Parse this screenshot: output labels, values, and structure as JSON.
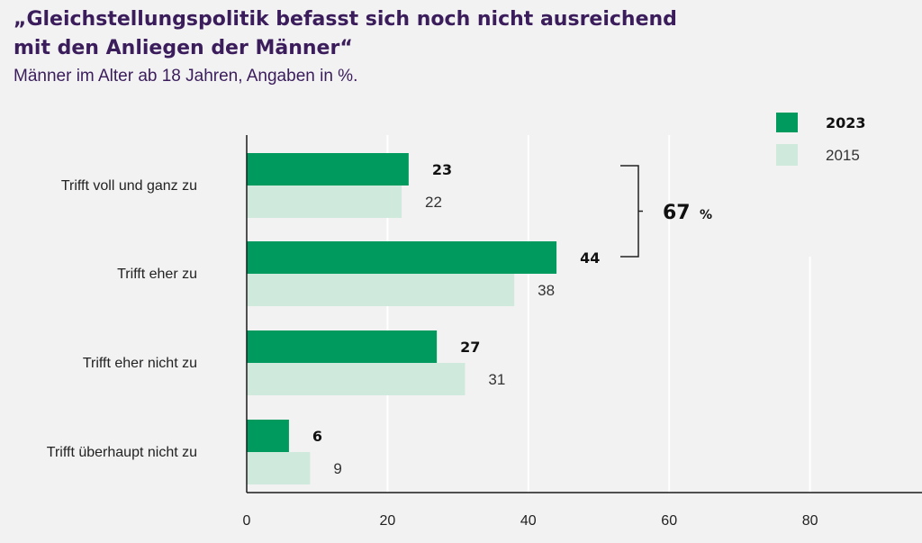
{
  "header": {
    "title_line1": "„Gleichstellungspolitik befasst sich noch nicht ausreichend",
    "title_line2": "mit den Anliegen der Männer“",
    "subtitle": "Männer im Alter ab 18 Jahren, Angaben in %."
  },
  "colors": {
    "series_2023": "#009a5e",
    "series_2015": "#cfeadd",
    "title": "#3b1d5c",
    "grid": "#ffffff",
    "axis": "#1a1a1a"
  },
  "chart_data": {
    "type": "bar",
    "orientation": "horizontal",
    "categories": [
      "Trifft voll und ganz zu",
      "Trifft eher zu",
      "Trifft eher nicht zu",
      "Trifft überhaupt nicht zu"
    ],
    "series": [
      {
        "name": "2023",
        "values": [
          23,
          44,
          27,
          6
        ]
      },
      {
        "name": "2015",
        "values": [
          22,
          38,
          31,
          9
        ]
      }
    ],
    "xlim": [
      0,
      92
    ],
    "xticks": [
      0,
      20,
      40,
      60,
      80
    ],
    "grid": true,
    "legend_position": "top-right",
    "annotation": {
      "value": "67",
      "unit": "%",
      "spans_categories": [
        "Trifft voll und ganz zu",
        "Trifft eher zu"
      ]
    }
  }
}
